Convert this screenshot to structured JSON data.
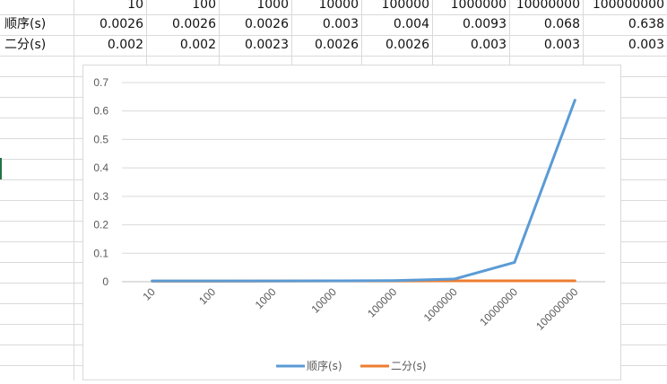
{
  "table": {
    "header_row": [
      "10",
      "100",
      "1000",
      "10000",
      "100000",
      "1000000",
      "10000000",
      "100000000"
    ],
    "rows": [
      {
        "label": "顺序(s)",
        "cells": [
          "0.0026",
          "0.0026",
          "0.0026",
          "0.003",
          "0.004",
          "0.0093",
          "0.068",
          "0.638"
        ]
      },
      {
        "label": "二分(s)",
        "cells": [
          "0.002",
          "0.002",
          "0.0023",
          "0.0026",
          "0.0026",
          "0.003",
          "0.003",
          "0.003"
        ]
      }
    ]
  },
  "chart_data": {
    "type": "line",
    "categories": [
      "10",
      "100",
      "1000",
      "10000",
      "100000",
      "1000000",
      "10000000",
      "100000000"
    ],
    "series": [
      {
        "name": "顺序(s)",
        "color": "#5b9bd5",
        "values": [
          0.0026,
          0.0026,
          0.0026,
          0.003,
          0.004,
          0.0093,
          0.068,
          0.638
        ]
      },
      {
        "name": "二分(s)",
        "color": "#ed7d31",
        "values": [
          0.002,
          0.002,
          0.0023,
          0.0026,
          0.0026,
          0.003,
          0.003,
          0.003
        ]
      }
    ],
    "ylim": [
      0,
      0.7
    ],
    "yticks": [
      "0",
      "0.1",
      "0.2",
      "0.3",
      "0.4",
      "0.5",
      "0.6",
      "0.7"
    ],
    "grid": true,
    "legend_position": "bottom",
    "title": "",
    "xlabel": "",
    "ylabel": ""
  }
}
